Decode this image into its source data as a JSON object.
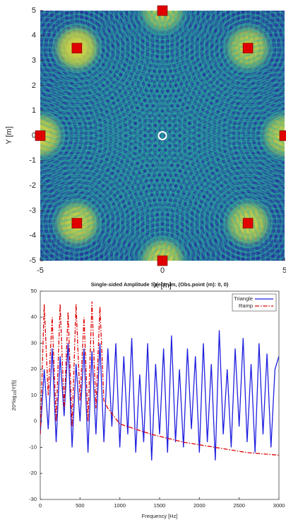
{
  "chart_data": [
    {
      "type": "field",
      "xlabel": "X [m]",
      "ylabel": "Y [m]",
      "x": [
        0,
        3.5,
        5,
        3.5,
        0,
        -3.5,
        -5,
        -3.5
      ],
      "y": [
        5,
        3.5,
        0,
        -3.5,
        -5,
        -3.5,
        0,
        3.5
      ],
      "color": "#e00000",
      "observation": [
        0,
        0
      ],
      "xlim": [
        -5,
        5
      ],
      "xticks": [
        -5,
        0,
        5
      ],
      "ylim": [
        -5,
        5
      ],
      "yticks": [
        -5,
        -4,
        -3,
        -2,
        -1,
        0,
        1,
        2,
        3,
        4,
        5
      ]
    },
    {
      "type": "line",
      "title": "Single-sided Amplitude Spectrum, (Obs.point (m): 0, 0)",
      "xlabel": "Frequency [Hz]",
      "ylabel": [
        "20*log",
        "10",
        "|Y(f)|"
      ],
      "legend": "upper right",
      "series": [
        {
          "name": "Triangle",
          "color": "#1f1fe0",
          "style": "solid",
          "x": [
            0,
            50,
            100,
            150,
            200,
            250,
            300,
            350,
            400,
            450,
            500,
            550,
            600,
            650,
            700,
            750,
            800,
            850,
            900,
            950,
            1000,
            1050,
            1100,
            1150,
            1200,
            1250,
            1300,
            1350,
            1400,
            1450,
            1500,
            1550,
            1600,
            1650,
            1700,
            1750,
            1800,
            1850,
            1900,
            1950,
            2000,
            2050,
            2100,
            2150,
            2200,
            2250,
            2300,
            2350,
            2400,
            2450,
            2500,
            2550,
            2600,
            2650,
            2700,
            2750,
            2800,
            2850,
            2900,
            2950,
            3000
          ],
          "values": [
            -5,
            20,
            -3,
            28,
            -8,
            25,
            2,
            30,
            -10,
            22,
            0,
            28,
            -12,
            27,
            -5,
            30,
            -8,
            28,
            -2,
            30,
            -10,
            25,
            -5,
            32,
            -12,
            18,
            -8,
            30,
            -15,
            22,
            -5,
            28,
            -12,
            33,
            -8,
            20,
            -10,
            28,
            -3,
            25,
            -12,
            30,
            -8,
            22,
            -15,
            35,
            -5,
            20,
            -10,
            28,
            -2,
            32,
            -8,
            22,
            -12,
            30,
            -5,
            26,
            -10,
            20,
            25
          ]
        },
        {
          "name": "Ramp",
          "color": "#e00000",
          "style": "dashdot",
          "x": [
            0,
            50,
            100,
            150,
            200,
            250,
            300,
            350,
            400,
            450,
            500,
            550,
            600,
            650,
            700,
            750,
            800,
            850,
            1000,
            1200,
            1400,
            1600,
            1800,
            2000,
            2200,
            2400,
            2600,
            2800,
            3000
          ],
          "values": [
            -5,
            45,
            10,
            40,
            0,
            45,
            5,
            42,
            -2,
            45,
            8,
            40,
            0,
            46,
            5,
            44,
            8,
            5,
            -1,
            -3,
            -5,
            -6.5,
            -8,
            -9,
            -10,
            -11,
            -12,
            -12.5,
            -13
          ]
        }
      ],
      "xlim": [
        0,
        3000
      ],
      "xticks": [
        0,
        500,
        1000,
        1500,
        2000,
        2500,
        3000
      ],
      "ylim": [
        -30,
        50
      ],
      "yticks": [
        -30,
        -20,
        -10,
        0,
        10,
        20,
        30,
        40,
        50
      ]
    }
  ]
}
